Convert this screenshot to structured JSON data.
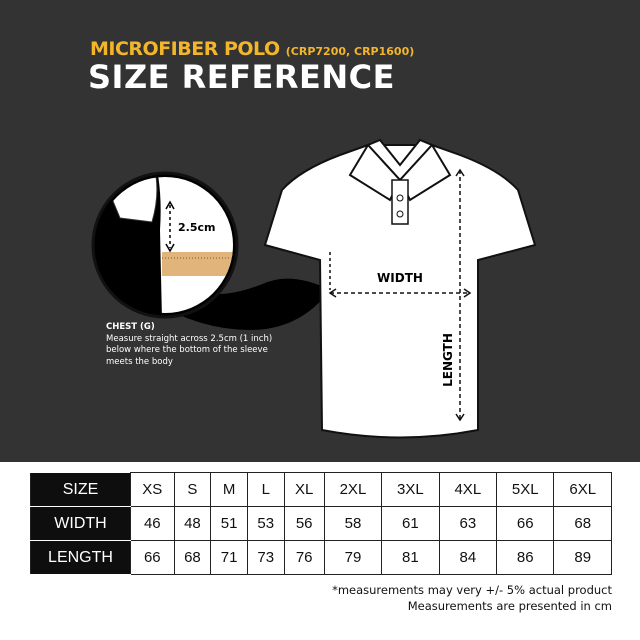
{
  "header": {
    "product": "MICROFIBER POLO",
    "models": "(CRP7200, CRP1600)",
    "title": "SIZE REFERENCE"
  },
  "diagram": {
    "inset_measure": "2.5cm",
    "width_label": "WIDTH",
    "length_label": "LENGTH",
    "chest_title": "CHEST (G)",
    "chest_text": "Measure straight across 2.5cm (1 inch) below where the bottom of the sleeve meets the body"
  },
  "table": {
    "rows": [
      {
        "label": "SIZE",
        "values": [
          "XS",
          "S",
          "M",
          "L",
          "XL",
          "2XL",
          "3XL",
          "4XL",
          "5XL",
          "6XL"
        ]
      },
      {
        "label": "WIDTH",
        "values": [
          "46",
          "48",
          "51",
          "53",
          "56",
          "58",
          "61",
          "63",
          "66",
          "68"
        ]
      },
      {
        "label": "LENGTH",
        "values": [
          "66",
          "68",
          "71",
          "73",
          "76",
          "79",
          "81",
          "84",
          "86",
          "89"
        ]
      }
    ]
  },
  "footnote": {
    "line1": "*measurements may very +/- 5% actual product",
    "line2": "Measurements are presented in cm"
  },
  "colors": {
    "background": "#333333",
    "accent": "#f3b52a",
    "ruler": "#e0b47a"
  }
}
